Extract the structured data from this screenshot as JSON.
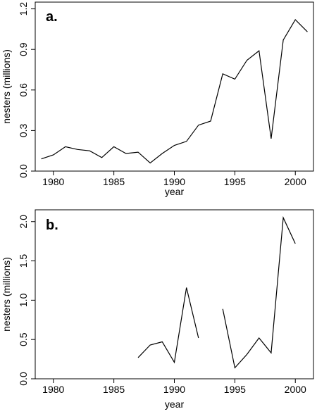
{
  "chart_data": [
    {
      "type": "line",
      "panel_label": "a.",
      "xlabel": "year",
      "ylabel": "nesters (millions)",
      "xlim": [
        1978.5,
        2001.5
      ],
      "ylim": [
        0.0,
        1.25
      ],
      "x_ticks": [
        1980,
        1985,
        1990,
        1995,
        2000
      ],
      "x_tick_labels": [
        "1980",
        "1985",
        "1990",
        "1995",
        "2000"
      ],
      "y_ticks": [
        0.0,
        0.3,
        0.6,
        0.9,
        1.2
      ],
      "y_tick_labels": [
        "0.0",
        "0.3",
        "0.6",
        "0.9",
        "1.2"
      ],
      "grid": false,
      "series": [
        {
          "x": [
            1979,
            1980,
            1981,
            1982,
            1983,
            1984,
            1985,
            1986,
            1987,
            1988,
            1989,
            1990,
            1991,
            1992,
            1993,
            1994,
            1995,
            1996,
            1997,
            1998,
            1999,
            2000,
            2001
          ],
          "y": [
            0.09,
            0.12,
            0.18,
            0.16,
            0.15,
            0.1,
            0.18,
            0.13,
            0.14,
            0.06,
            0.13,
            0.19,
            0.22,
            0.34,
            0.37,
            0.72,
            0.68,
            0.82,
            0.89,
            0.24,
            0.97,
            1.12,
            1.03
          ]
        }
      ]
    },
    {
      "type": "line",
      "panel_label": "b.",
      "xlabel": "year",
      "ylabel": "nesters (millions)",
      "xlim": [
        1978.5,
        2001.5
      ],
      "ylim": [
        0.0,
        2.15
      ],
      "x_ticks": [
        1980,
        1985,
        1990,
        1995,
        2000
      ],
      "x_tick_labels": [
        "1980",
        "1985",
        "1990",
        "1995",
        "2000"
      ],
      "y_ticks": [
        0.0,
        0.5,
        1.0,
        1.5,
        2.0
      ],
      "y_tick_labels": [
        "0.0",
        "0.5",
        "1.0",
        "1.5",
        "2.0"
      ],
      "grid": false,
      "series": [
        {
          "x": [
            1987,
            1988,
            1989,
            1990,
            1991,
            1992,
            1993,
            1994,
            1995,
            1996,
            1997,
            1998,
            1999,
            2000
          ],
          "y": [
            0.27,
            0.43,
            0.47,
            0.21,
            1.16,
            0.52,
            null,
            0.89,
            0.14,
            0.31,
            0.52,
            0.33,
            2.05,
            1.72
          ]
        }
      ]
    }
  ]
}
